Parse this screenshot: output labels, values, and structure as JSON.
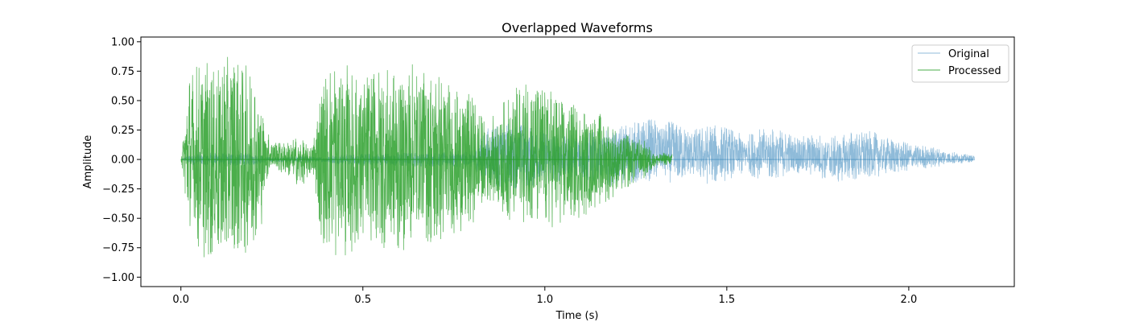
{
  "chart_data": {
    "type": "line",
    "title": "Overlapped Waveforms",
    "xlabel": "Time (s)",
    "ylabel": "Amplitude",
    "xlim": [
      -0.11,
      2.29
    ],
    "ylim": [
      -1.08,
      1.04
    ],
    "xticks": [
      0.0,
      0.5,
      1.0,
      1.5,
      2.0
    ],
    "xtick_labels": [
      "0.0",
      "0.5",
      "1.0",
      "1.5",
      "2.0"
    ],
    "yticks": [
      -1.0,
      -0.75,
      -0.5,
      -0.25,
      0.0,
      0.25,
      0.5,
      0.75,
      1.0
    ],
    "ytick_labels": [
      "−1.00",
      "−0.75",
      "−0.50",
      "−0.25",
      "0.00",
      "0.25",
      "0.50",
      "0.75",
      "1.00"
    ],
    "grid": false,
    "legend": "upper right",
    "series": [
      {
        "name": "Original",
        "color": "#1f77b4",
        "alpha": 0.5,
        "envelope": {
          "t": [
            0.0,
            0.02,
            0.05,
            0.1,
            0.15,
            0.2,
            0.23,
            0.25,
            0.3,
            0.35,
            0.38,
            0.42,
            0.5,
            0.6,
            0.7,
            0.8,
            0.85,
            0.9,
            0.95,
            1.0,
            1.05,
            1.1,
            1.15,
            1.2,
            1.25,
            1.3,
            1.35,
            1.4,
            1.45,
            1.5,
            1.55,
            1.6,
            1.65,
            1.7,
            1.75,
            1.8,
            1.85,
            1.9,
            1.95,
            2.0,
            2.05,
            2.1,
            2.15,
            2.18
          ],
          "upper": [
            0.0,
            0.04,
            0.06,
            0.06,
            0.06,
            0.05,
            0.03,
            0.02,
            0.03,
            0.03,
            0.02,
            0.04,
            0.05,
            0.06,
            0.06,
            0.07,
            0.3,
            0.32,
            0.3,
            0.25,
            0.2,
            0.22,
            0.25,
            0.3,
            0.32,
            0.36,
            0.32,
            0.25,
            0.3,
            0.28,
            0.2,
            0.28,
            0.25,
            0.2,
            0.22,
            0.2,
            0.25,
            0.24,
            0.18,
            0.14,
            0.12,
            0.08,
            0.05,
            0.03
          ],
          "lower": [
            0.0,
            -0.04,
            -0.06,
            -0.06,
            -0.06,
            -0.05,
            -0.03,
            -0.02,
            -0.03,
            -0.03,
            -0.02,
            -0.04,
            -0.05,
            -0.06,
            -0.06,
            -0.07,
            -0.22,
            -0.25,
            -0.24,
            -0.22,
            -0.18,
            -0.18,
            -0.2,
            -0.24,
            -0.2,
            -0.18,
            -0.2,
            -0.15,
            -0.22,
            -0.18,
            -0.12,
            -0.18,
            -0.15,
            -0.12,
            -0.15,
            -0.2,
            -0.18,
            -0.16,
            -0.12,
            -0.1,
            -0.08,
            -0.05,
            -0.03,
            -0.02
          ]
        }
      },
      {
        "name": "Processed",
        "color": "#2ca02c",
        "alpha": 0.85,
        "envelope": {
          "t": [
            0.0,
            0.01,
            0.02,
            0.04,
            0.06,
            0.09,
            0.12,
            0.15,
            0.18,
            0.2,
            0.22,
            0.23,
            0.25,
            0.28,
            0.3,
            0.32,
            0.34,
            0.36,
            0.37,
            0.38,
            0.4,
            0.42,
            0.45,
            0.48,
            0.5,
            0.55,
            0.6,
            0.65,
            0.7,
            0.75,
            0.8,
            0.83,
            0.85,
            0.9,
            0.95,
            1.0,
            1.05,
            1.1,
            1.15,
            1.2,
            1.25,
            1.28,
            1.3,
            1.33,
            1.35
          ],
          "upper": [
            0.0,
            0.35,
            0.7,
            0.82,
            0.85,
            0.8,
            0.88,
            0.85,
            0.8,
            0.75,
            0.55,
            0.25,
            0.2,
            0.15,
            0.15,
            0.2,
            0.15,
            0.1,
            0.3,
            0.55,
            0.75,
            0.9,
            0.85,
            0.7,
            0.72,
            0.8,
            0.75,
            0.85,
            0.78,
            0.6,
            0.55,
            0.35,
            0.35,
            0.55,
            0.7,
            0.65,
            0.5,
            0.45,
            0.4,
            0.25,
            0.22,
            0.15,
            0.05,
            0.06,
            0.05
          ],
          "lower": [
            0.0,
            -0.3,
            -0.6,
            -0.75,
            -0.85,
            -0.85,
            -0.9,
            -0.82,
            -0.8,
            -0.7,
            -0.6,
            -0.2,
            -0.1,
            -0.12,
            -0.15,
            -0.25,
            -0.2,
            -0.1,
            -0.3,
            -0.6,
            -0.8,
            -0.85,
            -0.85,
            -0.75,
            -0.7,
            -0.75,
            -0.8,
            -0.7,
            -0.75,
            -0.65,
            -0.55,
            -0.4,
            -0.35,
            -0.55,
            -0.55,
            -0.6,
            -0.55,
            -0.5,
            -0.4,
            -0.3,
            -0.2,
            -0.15,
            -0.06,
            -0.05,
            -0.04
          ]
        }
      }
    ]
  }
}
